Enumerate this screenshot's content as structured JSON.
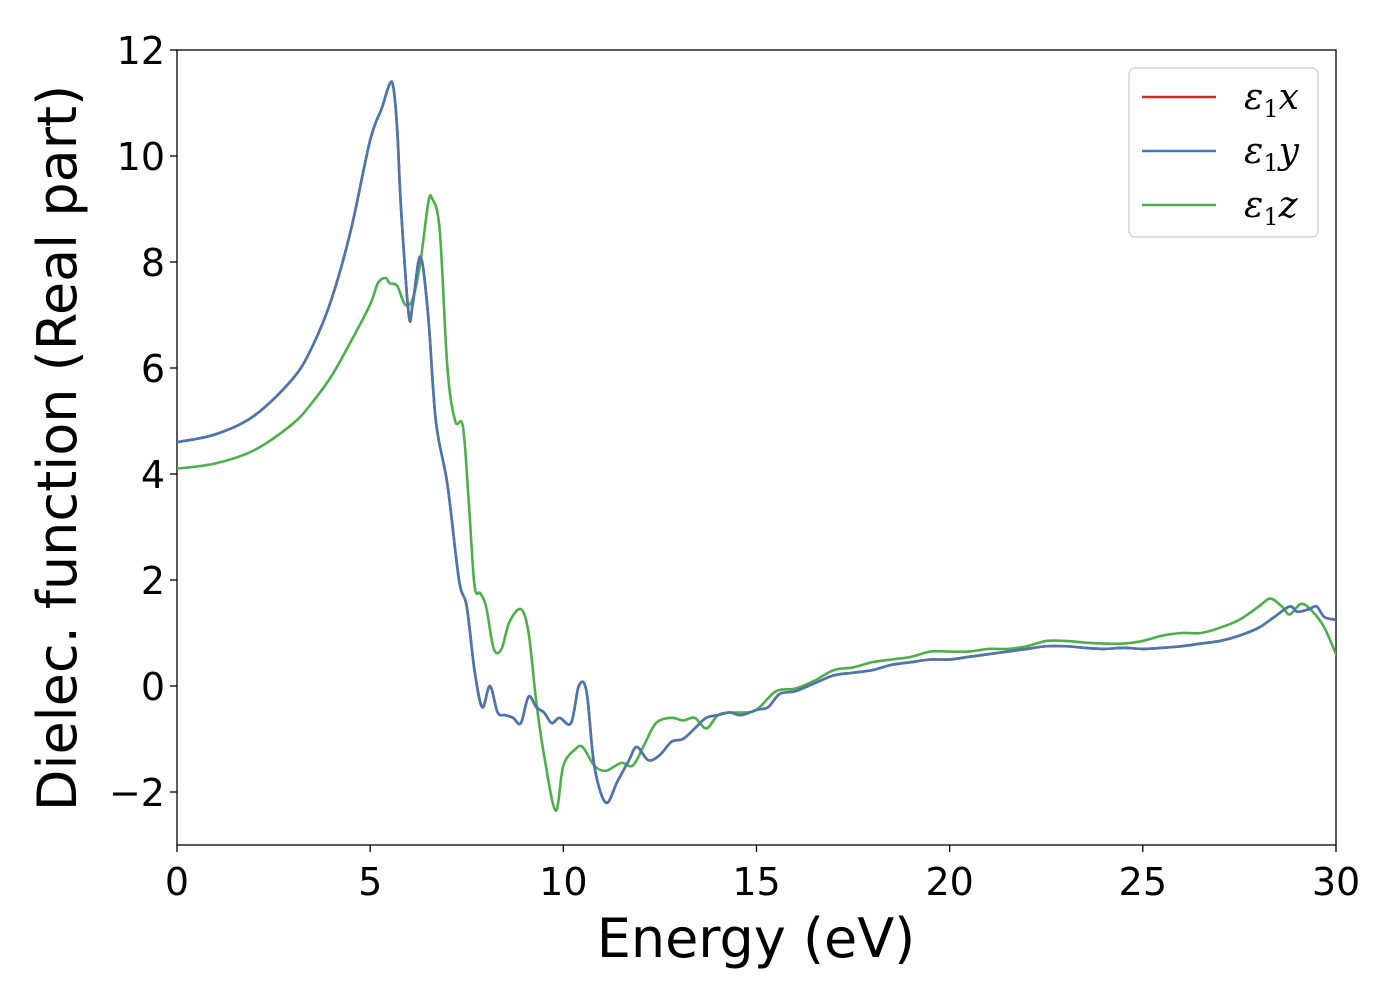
{
  "chart_data": {
    "type": "line",
    "title": "",
    "xlabel": "Energy (eV)",
    "ylabel": "Dielec. function (Real part)",
    "xlim": [
      0,
      30
    ],
    "ylim": [
      -3,
      12
    ],
    "xticks": [
      0,
      5,
      10,
      15,
      20,
      25,
      30
    ],
    "yticks": [
      -2,
      0,
      2,
      4,
      6,
      8,
      10,
      12
    ],
    "xtick_labels": [
      "0",
      "5",
      "10",
      "15",
      "20",
      "25",
      "30"
    ],
    "ytick_labels": [
      "−2",
      "0",
      "2",
      "4",
      "6",
      "8",
      "10",
      "12"
    ],
    "grid": false,
    "legend_position": "top-right",
    "series": [
      {
        "name": "ε₁x",
        "name_parts": [
          "ε",
          "1",
          "x"
        ],
        "color": "#d62728",
        "x": [
          0,
          1,
          2,
          3,
          3.5,
          4,
          4.5,
          5,
          5.3,
          5.5,
          5.6,
          5.7,
          5.8,
          6.0,
          6.1,
          6.3,
          6.5,
          6.7,
          7.0,
          7.3,
          7.5,
          7.7,
          7.9,
          8.1,
          8.3,
          8.5,
          8.7,
          8.9,
          9.1,
          9.3,
          9.5,
          9.7,
          9.9,
          10.2,
          10.4,
          10.6,
          10.8,
          11.1,
          11.4,
          11.7,
          11.9,
          12.2,
          12.5,
          12.8,
          13.1,
          13.4,
          13.7,
          14.0,
          14.3,
          14.6,
          15.0,
          15.3,
          15.6,
          16.0,
          16.5,
          17.0,
          17.5,
          18.0,
          18.5,
          19.0,
          19.5,
          20.0,
          20.5,
          21.0,
          21.5,
          22.0,
          22.5,
          23.0,
          23.5,
          24.0,
          24.5,
          25.0,
          25.5,
          26.0,
          26.5,
          27.0,
          27.5,
          28.0,
          28.4,
          28.8,
          29.0,
          29.3,
          29.5,
          29.7,
          30.0
        ],
        "y": [
          4.6,
          4.75,
          5.1,
          5.8,
          6.4,
          7.3,
          8.6,
          10.3,
          10.9,
          11.35,
          11.3,
          10.5,
          9.0,
          7.0,
          7.2,
          8.1,
          7.0,
          5.0,
          3.8,
          2.0,
          1.5,
          0.3,
          -0.4,
          0.0,
          -0.5,
          -0.55,
          -0.6,
          -0.7,
          -0.2,
          -0.4,
          -0.5,
          -0.7,
          -0.6,
          -0.7,
          0.0,
          -0.1,
          -1.5,
          -2.2,
          -1.8,
          -1.4,
          -1.15,
          -1.4,
          -1.3,
          -1.05,
          -1.0,
          -0.8,
          -0.6,
          -0.55,
          -0.5,
          -0.55,
          -0.45,
          -0.4,
          -0.15,
          -0.1,
          0.05,
          0.2,
          0.25,
          0.3,
          0.4,
          0.45,
          0.5,
          0.5,
          0.55,
          0.6,
          0.65,
          0.7,
          0.75,
          0.75,
          0.72,
          0.7,
          0.72,
          0.7,
          0.72,
          0.75,
          0.8,
          0.85,
          0.95,
          1.1,
          1.3,
          1.5,
          1.4,
          1.45,
          1.5,
          1.3,
          1.25
        ]
      },
      {
        "name": "ε₁y",
        "name_parts": [
          "ε",
          "1",
          "y"
        ],
        "color": "#4878b0",
        "x": [
          0,
          1,
          2,
          3,
          3.5,
          4,
          4.5,
          5,
          5.3,
          5.5,
          5.6,
          5.7,
          5.8,
          6.0,
          6.1,
          6.3,
          6.5,
          6.7,
          7.0,
          7.3,
          7.5,
          7.7,
          7.9,
          8.1,
          8.3,
          8.5,
          8.7,
          8.9,
          9.1,
          9.3,
          9.5,
          9.7,
          9.9,
          10.2,
          10.4,
          10.6,
          10.8,
          11.1,
          11.4,
          11.7,
          11.9,
          12.2,
          12.5,
          12.8,
          13.1,
          13.4,
          13.7,
          14.0,
          14.3,
          14.6,
          15.0,
          15.3,
          15.6,
          16.0,
          16.5,
          17.0,
          17.5,
          18.0,
          18.5,
          19.0,
          19.5,
          20.0,
          20.5,
          21.0,
          21.5,
          22.0,
          22.5,
          23.0,
          23.5,
          24.0,
          24.5,
          25.0,
          25.5,
          26.0,
          26.5,
          27.0,
          27.5,
          28.0,
          28.4,
          28.8,
          29.0,
          29.3,
          29.5,
          29.7,
          30.0
        ],
        "y": [
          4.6,
          4.75,
          5.1,
          5.8,
          6.4,
          7.3,
          8.6,
          10.3,
          10.9,
          11.35,
          11.3,
          10.5,
          9.0,
          7.0,
          7.2,
          8.1,
          7.0,
          5.0,
          3.8,
          2.0,
          1.5,
          0.3,
          -0.4,
          0.0,
          -0.5,
          -0.55,
          -0.6,
          -0.7,
          -0.2,
          -0.4,
          -0.5,
          -0.7,
          -0.6,
          -0.7,
          0.0,
          -0.1,
          -1.5,
          -2.2,
          -1.8,
          -1.4,
          -1.15,
          -1.4,
          -1.3,
          -1.05,
          -1.0,
          -0.8,
          -0.6,
          -0.55,
          -0.5,
          -0.55,
          -0.45,
          -0.4,
          -0.15,
          -0.1,
          0.05,
          0.2,
          0.25,
          0.3,
          0.4,
          0.45,
          0.5,
          0.5,
          0.55,
          0.6,
          0.65,
          0.7,
          0.75,
          0.75,
          0.72,
          0.7,
          0.72,
          0.7,
          0.72,
          0.75,
          0.8,
          0.85,
          0.95,
          1.1,
          1.3,
          1.5,
          1.4,
          1.45,
          1.5,
          1.3,
          1.25
        ]
      },
      {
        "name": "ε₁z",
        "name_parts": [
          "ε",
          "1",
          "z"
        ],
        "color": "#4daf4a",
        "x": [
          0,
          1,
          2,
          3,
          3.5,
          4,
          4.5,
          5,
          5.2,
          5.4,
          5.5,
          5.7,
          5.9,
          6.1,
          6.3,
          6.5,
          6.6,
          6.8,
          7.0,
          7.2,
          7.4,
          7.55,
          7.7,
          7.85,
          8.0,
          8.2,
          8.4,
          8.6,
          8.9,
          9.1,
          9.3,
          9.5,
          9.8,
          10.0,
          10.3,
          10.5,
          10.8,
          11.1,
          11.5,
          11.8,
          12.1,
          12.4,
          12.8,
          13.1,
          13.4,
          13.7,
          14.0,
          14.3,
          14.6,
          15.0,
          15.5,
          16.0,
          16.5,
          17.0,
          17.5,
          18.0,
          18.5,
          19.0,
          19.5,
          20.0,
          20.5,
          21.0,
          21.5,
          22.0,
          22.5,
          23.0,
          23.5,
          24.0,
          24.5,
          25.0,
          25.5,
          26.0,
          26.5,
          27.0,
          27.5,
          28.0,
          28.3,
          28.6,
          28.8,
          29.1,
          29.4,
          29.7,
          30.0
        ],
        "y": [
          4.1,
          4.2,
          4.45,
          4.95,
          5.35,
          5.85,
          6.5,
          7.2,
          7.6,
          7.7,
          7.6,
          7.55,
          7.2,
          7.3,
          8.0,
          9.1,
          9.2,
          8.6,
          6.0,
          5.0,
          4.9,
          3.5,
          1.9,
          1.75,
          1.5,
          0.7,
          0.7,
          1.2,
          1.45,
          1.0,
          -0.3,
          -1.3,
          -2.35,
          -1.5,
          -1.2,
          -1.15,
          -1.5,
          -1.6,
          -1.45,
          -1.5,
          -1.1,
          -0.7,
          -0.6,
          -0.65,
          -0.6,
          -0.8,
          -0.55,
          -0.5,
          -0.5,
          -0.45,
          -0.1,
          -0.05,
          0.1,
          0.3,
          0.35,
          0.45,
          0.5,
          0.55,
          0.65,
          0.65,
          0.65,
          0.7,
          0.7,
          0.75,
          0.85,
          0.85,
          0.82,
          0.8,
          0.8,
          0.85,
          0.95,
          1.0,
          1.0,
          1.1,
          1.25,
          1.5,
          1.65,
          1.5,
          1.35,
          1.55,
          1.4,
          1.1,
          0.6
        ]
      }
    ]
  }
}
